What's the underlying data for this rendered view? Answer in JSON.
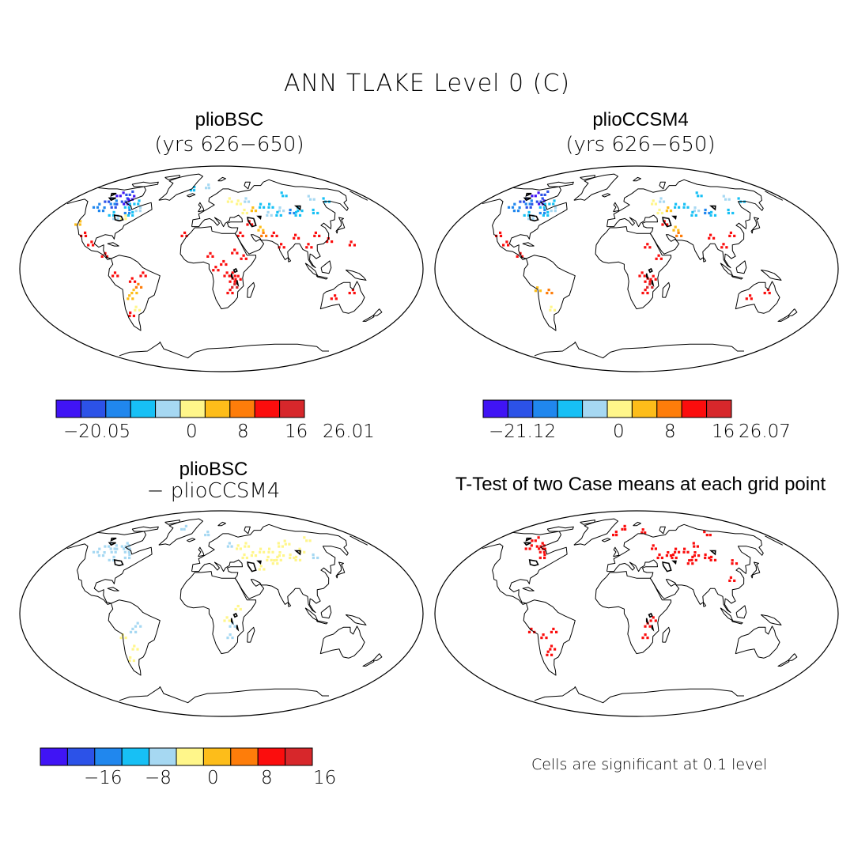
{
  "main_title": "ANN TLAKE Level 0 (C)",
  "panels": [
    {
      "title": "plioBSC",
      "subtitle": "(yrs 626−650)"
    },
    {
      "title": "plioCCSM4",
      "subtitle": "(yrs 626−650)"
    },
    {
      "title": "plioBSC",
      "subtitle": "− plioCCSM4"
    },
    {
      "title": "T-Test of two Case means at each grid point",
      "subtitle": ""
    }
  ],
  "colorbars": [
    {
      "colors": [
        "#4014f5",
        "#2c52e8",
        "#2087ee",
        "#17c0f5",
        "#a6d8f2",
        "#fff68a",
        "#fdbd1a",
        "#fe7d0a",
        "#fb0d0d",
        "#d7272b"
      ],
      "labels": [
        "−20.05",
        "0",
        "8",
        "16",
        "26.01"
      ]
    },
    {
      "colors": [
        "#4014f5",
        "#2c52e8",
        "#2087ee",
        "#17c0f5",
        "#a6d8f2",
        "#fff68a",
        "#fdbd1a",
        "#fe7d0a",
        "#fb0d0d",
        "#d7272b"
      ],
      "labels": [
        "−21.12",
        "0",
        "8",
        "16",
        "26.07"
      ]
    },
    {
      "colors": [
        "#4014f5",
        "#2c52e8",
        "#2087ee",
        "#17c0f5",
        "#a6d8f2",
        "#fff68a",
        "#fdbd1a",
        "#fe7d0a",
        "#fb0d0d",
        "#d7272b"
      ],
      "labels": [
        "−16",
        "−8",
        "0",
        "8",
        "16"
      ]
    }
  ],
  "significance_note": "Cells are significant at 0.1 level"
}
